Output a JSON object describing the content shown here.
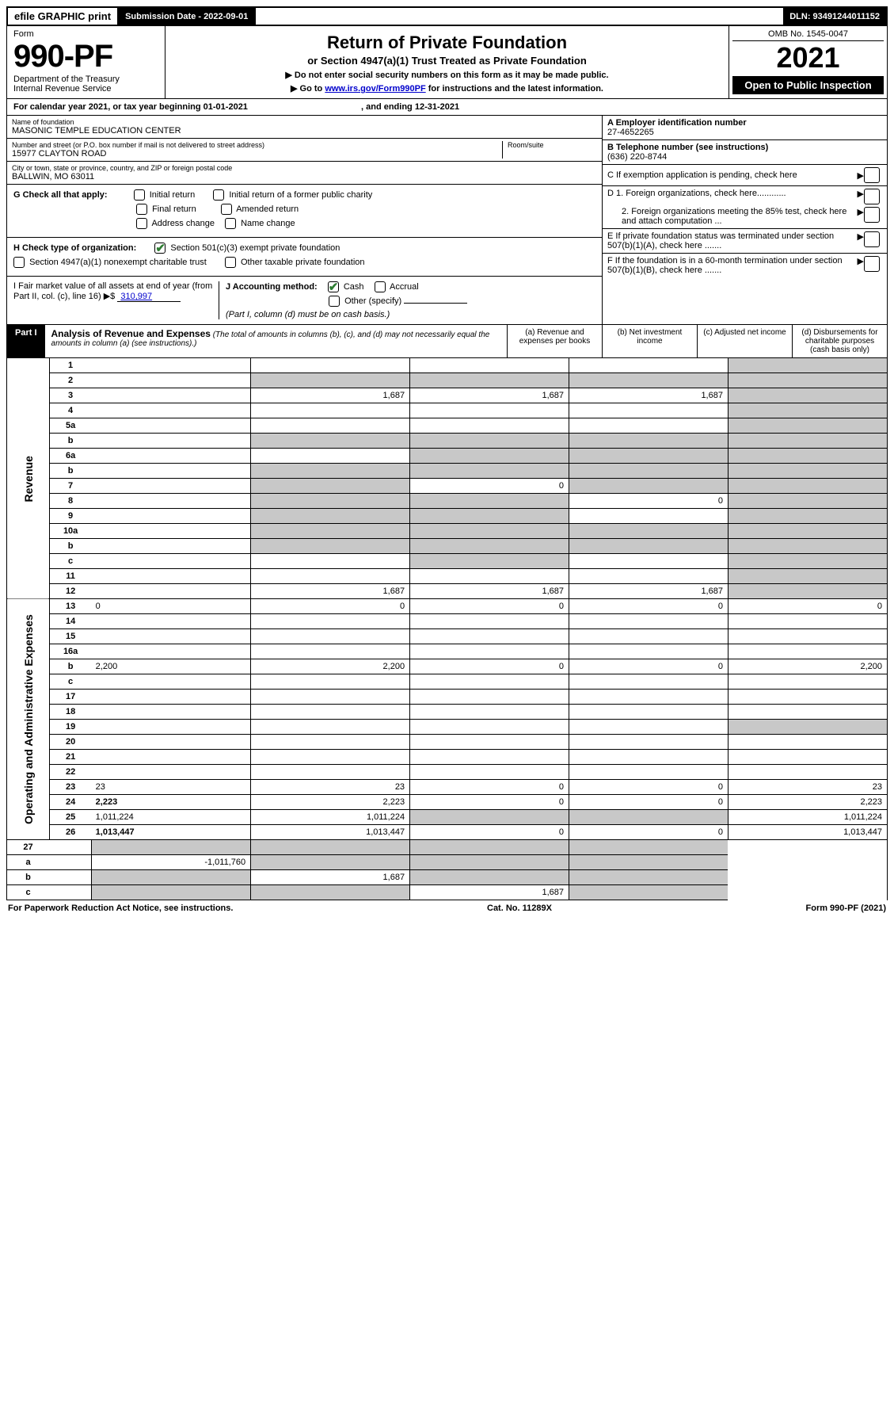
{
  "topbar": {
    "efile": "efile GRAPHIC print",
    "submission_label": "Submission Date - 2022-09-01",
    "dln": "DLN: 93491244011152"
  },
  "header": {
    "form_label": "Form",
    "form_no": "990-PF",
    "dept1": "Department of the Treasury",
    "dept2": "Internal Revenue Service",
    "title": "Return of Private Foundation",
    "subtitle": "or Section 4947(a)(1) Trust Treated as Private Foundation",
    "note1": "▶ Do not enter social security numbers on this form as it may be made public.",
    "note2_pre": "▶ Go to ",
    "note2_link": "www.irs.gov/Form990PF",
    "note2_post": " for instructions and the latest information.",
    "omb": "OMB No. 1545-0047",
    "year": "2021",
    "open_pub": "Open to Public Inspection"
  },
  "cal_year": {
    "pre": "For calendar year 2021, or tax year beginning ",
    "begin": "01-01-2021",
    "mid": " , and ending ",
    "end": "12-31-2021"
  },
  "info": {
    "name_label": "Name of foundation",
    "name": "MASONIC TEMPLE EDUCATION CENTER",
    "addr_label": "Number and street (or P.O. box number if mail is not delivered to street address)",
    "addr": "15977 CLAYTON ROAD",
    "room_label": "Room/suite",
    "city_label": "City or town, state or province, country, and ZIP or foreign postal code",
    "city": "BALLWIN, MO  63011",
    "a_label": "A Employer identification number",
    "a_val": "27-4652265",
    "b_label": "B Telephone number (see instructions)",
    "b_val": "(636) 220-8744",
    "c_label": "C If exemption application is pending, check here",
    "d1_label": "D 1. Foreign organizations, check here............",
    "d2_label": "2. Foreign organizations meeting the 85% test, check here and attach computation ...",
    "e_label": "E  If private foundation status was terminated under section 507(b)(1)(A), check here .......",
    "f_label": "F  If the foundation is in a 60-month termination under section 507(b)(1)(B), check here .......",
    "g_label": "G Check all that apply:",
    "g_opts": [
      "Initial return",
      "Initial return of a former public charity",
      "Final return",
      "Amended return",
      "Address change",
      "Name change"
    ],
    "h_label": "H Check type of organization:",
    "h_opt1": "Section 501(c)(3) exempt private foundation",
    "h_opt2": "Section 4947(a)(1) nonexempt charitable trust",
    "h_opt3": "Other taxable private foundation",
    "i_label": "I Fair market value of all assets at end of year (from Part II, col. (c), line 16)",
    "i_val": "310,997",
    "j_label": "J Accounting method:",
    "j_cash": "Cash",
    "j_accrual": "Accrual",
    "j_other": "Other (specify)",
    "j_note": "(Part I, column (d) must be on cash basis.)"
  },
  "part1": {
    "label": "Part I",
    "title": "Analysis of Revenue and Expenses",
    "note": "(The total of amounts in columns (b), (c), and (d) may not necessarily equal the amounts in column (a) (see instructions).)",
    "col_a": "(a)  Revenue and expenses per books",
    "col_b": "(b)  Net investment income",
    "col_c": "(c)  Adjusted net income",
    "col_d": "(d)  Disbursements for charitable purposes (cash basis only)"
  },
  "side_labels": {
    "revenue": "Revenue",
    "expenses": "Operating and Administrative Expenses"
  },
  "rows": [
    {
      "n": "1",
      "d": "",
      "a": "",
      "b": "",
      "c": "",
      "dgrey": true
    },
    {
      "n": "2",
      "d": "",
      "a": "",
      "b": "",
      "c": "",
      "allgrey": true,
      "bold_not": true
    },
    {
      "n": "3",
      "d": "",
      "a": "1,687",
      "b": "1,687",
      "c": "1,687",
      "dgrey": true
    },
    {
      "n": "4",
      "d": "",
      "a": "",
      "b": "",
      "c": "",
      "dgrey": true
    },
    {
      "n": "5a",
      "d": "",
      "a": "",
      "b": "",
      "c": "",
      "dgrey": true
    },
    {
      "n": "b",
      "d": "",
      "a": "",
      "b": "",
      "c": "",
      "allgrey": true
    },
    {
      "n": "6a",
      "d": "",
      "a": "",
      "b": "",
      "c": "",
      "bcgrey": true,
      "dgrey": true
    },
    {
      "n": "b",
      "d": "",
      "a": "",
      "b": "",
      "c": "",
      "allgrey": true
    },
    {
      "n": "7",
      "d": "",
      "a": "",
      "b": "0",
      "c": "",
      "agrey": true,
      "cgrey": true,
      "dgrey": true
    },
    {
      "n": "8",
      "d": "",
      "a": "",
      "b": "",
      "c": "0",
      "agrey": true,
      "bgrey": true,
      "dgrey": true
    },
    {
      "n": "9",
      "d": "",
      "a": "",
      "b": "",
      "c": "",
      "agrey": true,
      "bgrey": true,
      "dgrey": true
    },
    {
      "n": "10a",
      "d": "",
      "a": "",
      "b": "",
      "c": "",
      "allgrey": true
    },
    {
      "n": "b",
      "d": "",
      "a": "",
      "b": "",
      "c": "",
      "allgrey": true
    },
    {
      "n": "c",
      "d": "",
      "a": "",
      "b": "",
      "c": "",
      "bgrey": true,
      "dgrey": true
    },
    {
      "n": "11",
      "d": "",
      "a": "",
      "b": "",
      "c": "",
      "dgrey": true
    },
    {
      "n": "12",
      "d": "",
      "a": "1,687",
      "b": "1,687",
      "c": "1,687",
      "dgrey": true,
      "bold": true
    }
  ],
  "exp_rows": [
    {
      "n": "13",
      "d": "0",
      "a": "0",
      "b": "0",
      "c": "0"
    },
    {
      "n": "14",
      "d": "",
      "a": "",
      "b": "",
      "c": ""
    },
    {
      "n": "15",
      "d": "",
      "a": "",
      "b": "",
      "c": ""
    },
    {
      "n": "16a",
      "d": "",
      "a": "",
      "b": "",
      "c": ""
    },
    {
      "n": "b",
      "d": "2,200",
      "a": "2,200",
      "b": "0",
      "c": "0"
    },
    {
      "n": "c",
      "d": "",
      "a": "",
      "b": "",
      "c": ""
    },
    {
      "n": "17",
      "d": "",
      "a": "",
      "b": "",
      "c": ""
    },
    {
      "n": "18",
      "d": "",
      "a": "",
      "b": "",
      "c": ""
    },
    {
      "n": "19",
      "d": "",
      "a": "",
      "b": "",
      "c": "",
      "dgrey": true
    },
    {
      "n": "20",
      "d": "",
      "a": "",
      "b": "",
      "c": ""
    },
    {
      "n": "21",
      "d": "",
      "a": "",
      "b": "",
      "c": ""
    },
    {
      "n": "22",
      "d": "",
      "a": "",
      "b": "",
      "c": ""
    },
    {
      "n": "23",
      "d": "23",
      "a": "23",
      "b": "0",
      "c": "0"
    },
    {
      "n": "24",
      "d": "2,223",
      "a": "2,223",
      "b": "0",
      "c": "0",
      "bold": true
    },
    {
      "n": "25",
      "d": "1,011,224",
      "a": "1,011,224",
      "b": "",
      "c": "",
      "bgrey": true,
      "cgrey": true
    },
    {
      "n": "26",
      "d": "1,013,447",
      "a": "1,013,447",
      "b": "0",
      "c": "0",
      "bold": true
    }
  ],
  "bottom_rows": [
    {
      "n": "27",
      "d": "",
      "a": "",
      "b": "",
      "c": "",
      "allgrey": true
    },
    {
      "n": "a",
      "d": "",
      "a": "-1,011,760",
      "b": "",
      "c": "",
      "bold": true,
      "bgrey": true,
      "cgrey": true,
      "dgrey": true
    },
    {
      "n": "b",
      "d": "",
      "a": "",
      "b": "1,687",
      "c": "",
      "bold": true,
      "agrey": true,
      "cgrey": true,
      "dgrey": true
    },
    {
      "n": "c",
      "d": "",
      "a": "",
      "b": "",
      "c": "1,687",
      "bold": true,
      "agrey": true,
      "bgrey": true,
      "dgrey": true
    }
  ],
  "footer": {
    "left": "For Paperwork Reduction Act Notice, see instructions.",
    "mid": "Cat. No. 11289X",
    "right": "Form 990-PF (2021)"
  },
  "colors": {
    "grey_cell": "#c8c8c8",
    "link": "#0000cc",
    "check_green": "#2e7d32"
  }
}
